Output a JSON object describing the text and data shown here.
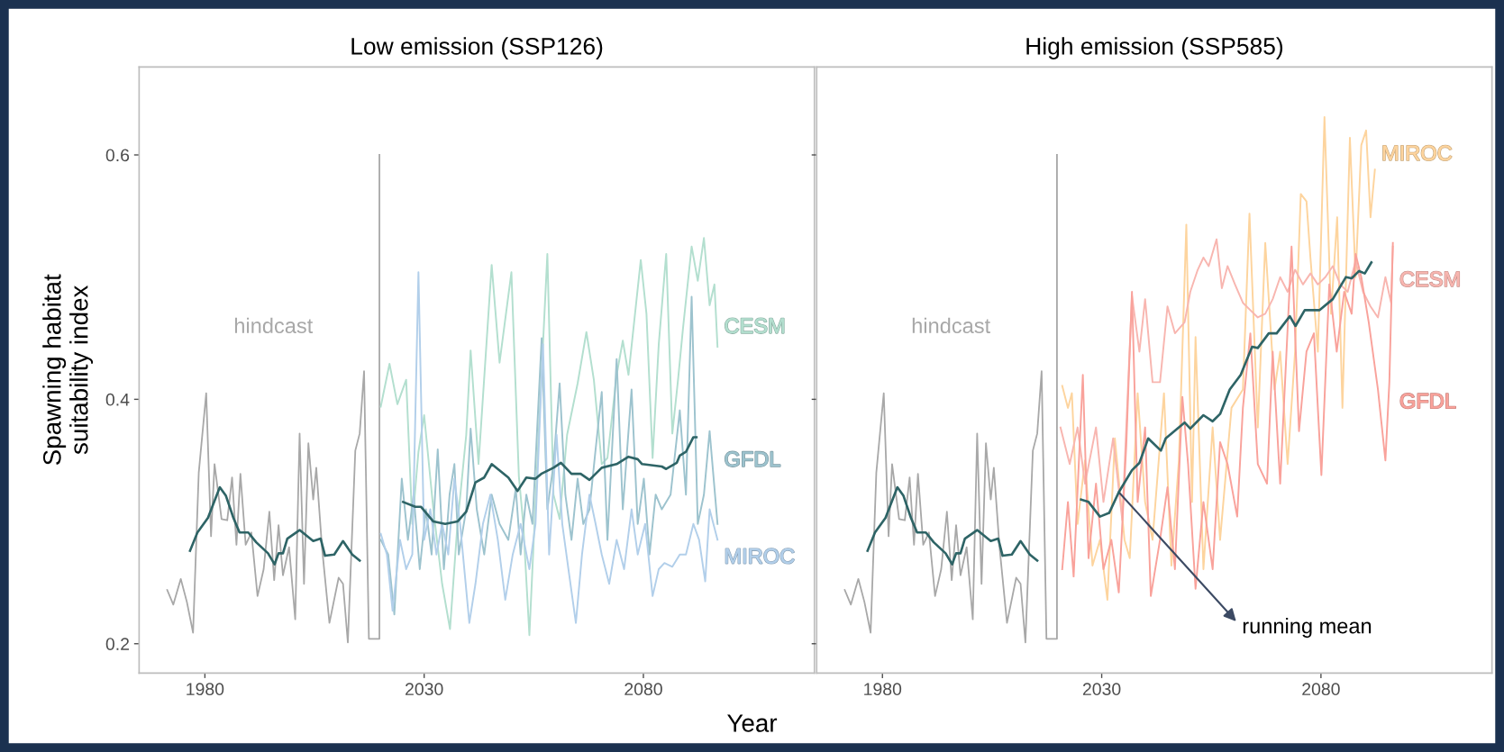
{
  "chart_data": [
    {
      "type": "line",
      "title": "Low emission (SSP126)",
      "xlabel": "Year",
      "ylabel": "Spawning habitat\nsuitability index",
      "xlim": [
        1965,
        2119
      ],
      "xticks": [
        1980,
        2030,
        2080
      ],
      "ylim": [
        0.176,
        0.672
      ],
      "yticks": [
        0.2,
        0.4,
        0.6
      ],
      "series": [
        {
          "name": "hindcast",
          "color": "#a8a8a8",
          "x": [
            1971.4,
            1972.8,
            1974.5,
            1975.9,
            1977.3,
            1978.6,
            1980.3,
            1981.4,
            1982.2,
            1983.8,
            1985.1,
            1986.2,
            1987.2,
            1988.1,
            1989.3,
            1990.6,
            1992.0,
            1993.4,
            1994.7,
            1995.8,
            1996.8,
            1997.8,
            1999.2,
            2000.6,
            2001.6,
            2002.6,
            2003.6,
            2004.7,
            2005.4,
            2006.7,
            2008.4,
            2010.5,
            2011.5,
            2012.6,
            2014.3,
            2015.3,
            2016.3,
            2017.4,
            2019.8,
            2019.8
          ],
          "values": [
            0.244,
            0.232,
            0.253,
            0.234,
            0.209,
            0.34,
            0.405,
            0.288,
            0.347,
            0.302,
            0.301,
            0.336,
            0.281,
            0.339,
            0.281,
            0.291,
            0.239,
            0.261,
            0.308,
            0.252,
            0.297,
            0.256,
            0.279,
            0.22,
            0.372,
            0.249,
            0.364,
            0.318,
            0.344,
            0.279,
            0.217,
            0.254,
            0.249,
            0.201,
            0.358,
            0.372,
            0.423,
            0.204,
            0.204,
            0.6
          ]
        },
        {
          "color": "#2e6466",
          "x": [
            1976.6,
            1978.3,
            1980.7,
            1983.4,
            1984.8,
            1986.5,
            1987.9,
            1989.9,
            1991.7,
            1994.4,
            1995.9,
            1996.8,
            1997.8,
            1998.8,
            2001.6,
            2004.7,
            2006.4,
            2007.4,
            2009.5,
            2011.5,
            2013.6,
            2015.3
          ],
          "values": [
            0.276,
            0.291,
            0.303,
            0.328,
            0.321,
            0.303,
            0.291,
            0.291,
            0.283,
            0.274,
            0.265,
            0.274,
            0.274,
            0.286,
            0.293,
            0.284,
            0.286,
            0.272,
            0.273,
            0.284,
            0.273,
            0.268
          ]
        },
        {
          "name": "CESM",
          "color": "#b3dfcf",
          "x": [
            2020.1,
            2022.1,
            2023.9,
            2025.9,
            2027.3,
            2028.7,
            2030.0,
            2032.1,
            2034.1,
            2035.9,
            2037.6,
            2039.6,
            2040.6,
            2042.4,
            2045.4,
            2047.2,
            2049.9,
            2051.6,
            2052.6,
            2054.0,
            2056.1,
            2058.1,
            2059.5,
            2060.9,
            2062.6,
            2065.0,
            2067.0,
            2068.7,
            2070.5,
            2071.8,
            2073.9,
            2075.3,
            2076.6,
            2079.4,
            2080.7,
            2082.1,
            2083.5,
            2085.2,
            2086.6,
            2087.9,
            2089.0,
            2091.0,
            2092.4,
            2093.8,
            2095.1,
            2096.2,
            2096.9
          ],
          "values": [
            0.394,
            0.429,
            0.396,
            0.416,
            0.298,
            0.357,
            0.387,
            0.31,
            0.249,
            0.212,
            0.298,
            0.371,
            0.44,
            0.347,
            0.51,
            0.43,
            0.504,
            0.337,
            0.298,
            0.207,
            0.371,
            0.519,
            0.322,
            0.302,
            0.371,
            0.413,
            0.455,
            0.416,
            0.347,
            0.352,
            0.42,
            0.448,
            0.42,
            0.514,
            0.47,
            0.352,
            0.445,
            0.519,
            0.372,
            0.416,
            0.457,
            0.525,
            0.497,
            0.532,
            0.477,
            0.494,
            0.443
          ]
        },
        {
          "name": "GFDL",
          "color": "#9dc3ce",
          "x": [
            2020.1,
            2021.8,
            2023.2,
            2024.9,
            2026.3,
            2027.6,
            2029.0,
            2030.4,
            2031.7,
            2033.1,
            2034.5,
            2035.8,
            2036.9,
            2037.9,
            2039.6,
            2040.6,
            2042.0,
            2043.7,
            2045.4,
            2047.2,
            2049.2,
            2050.9,
            2052.0,
            2053.3,
            2054.7,
            2056.8,
            2058.1,
            2059.5,
            2060.9,
            2062.2,
            2063.6,
            2065.0,
            2066.3,
            2067.7,
            2069.1,
            2070.5,
            2071.8,
            2073.9,
            2075.3,
            2077.3,
            2078.7,
            2080.1,
            2081.4,
            2082.8,
            2084.2,
            2086.2,
            2088.3,
            2089.7,
            2091.0,
            2092.4,
            2093.8,
            2095.1,
            2096.9
          ],
          "values": [
            0.285,
            0.273,
            0.224,
            0.335,
            0.285,
            0.322,
            0.261,
            0.31,
            0.273,
            0.359,
            0.261,
            0.322,
            0.347,
            0.273,
            0.31,
            0.376,
            0.31,
            0.273,
            0.322,
            0.298,
            0.285,
            0.327,
            0.273,
            0.322,
            0.298,
            0.45,
            0.31,
            0.347,
            0.413,
            0.322,
            0.285,
            0.335,
            0.298,
            0.31,
            0.359,
            0.406,
            0.285,
            0.433,
            0.31,
            0.408,
            0.298,
            0.335,
            0.273,
            0.322,
            0.31,
            0.322,
            0.391,
            0.322,
            0.484,
            0.298,
            0.322,
            0.374,
            0.298
          ]
        },
        {
          "name": "MIROC",
          "color": "#b2cfea",
          "x": [
            2020.1,
            2021.5,
            2022.8,
            2024.5,
            2025.9,
            2027.3,
            2028.7,
            2030.0,
            2031.4,
            2032.8,
            2034.1,
            2035.5,
            2036.9,
            2038.2,
            2040.3,
            2041.7,
            2043.4,
            2045.1,
            2046.8,
            2048.5,
            2050.2,
            2052.0,
            2054.0,
            2055.4,
            2057.1,
            2058.5,
            2060.2,
            2061.5,
            2062.9,
            2064.6,
            2066.0,
            2067.7,
            2069.1,
            2070.5,
            2072.2,
            2073.9,
            2075.6,
            2077.3,
            2078.7,
            2080.4,
            2082.1,
            2083.5,
            2084.8,
            2086.6,
            2088.3,
            2089.7,
            2091.4,
            2092.7,
            2094.1,
            2095.1,
            2096.9
          ],
          "values": [
            0.29,
            0.273,
            0.227,
            0.285,
            0.261,
            0.273,
            0.504,
            0.285,
            0.31,
            0.273,
            0.298,
            0.273,
            0.335,
            0.298,
            0.217,
            0.249,
            0.298,
            0.322,
            0.285,
            0.236,
            0.273,
            0.298,
            0.261,
            0.298,
            0.445,
            0.273,
            0.371,
            0.298,
            0.261,
            0.217,
            0.273,
            0.322,
            0.298,
            0.273,
            0.249,
            0.285,
            0.261,
            0.31,
            0.273,
            0.298,
            0.239,
            0.261,
            0.266,
            0.263,
            0.273,
            0.273,
            0.298,
            0.285,
            0.251,
            0.31,
            0.285
          ]
        },
        {
          "color": "#2e6466",
          "x": [
            2025.2,
            2028.0,
            2029.3,
            2032.1,
            2034.8,
            2037.6,
            2039.6,
            2041.7,
            2043.7,
            2045.4,
            2049.2,
            2051.3,
            2053.3,
            2055.4,
            2056.7,
            2059.5,
            2061.2,
            2063.6,
            2065.7,
            2067.7,
            2070.5,
            2073.9,
            2076.6,
            2078.7,
            2079.7,
            2084.2,
            2085.2,
            2087.6,
            2088.3,
            2089.7,
            2091.4,
            2092.1
          ],
          "values": [
            0.316,
            0.312,
            0.312,
            0.3,
            0.298,
            0.3,
            0.308,
            0.332,
            0.336,
            0.347,
            0.336,
            0.325,
            0.336,
            0.335,
            0.339,
            0.344,
            0.348,
            0.339,
            0.339,
            0.334,
            0.344,
            0.347,
            0.353,
            0.351,
            0.347,
            0.345,
            0.343,
            0.348,
            0.354,
            0.357,
            0.369,
            0.369
          ]
        }
      ]
    },
    {
      "type": "line",
      "title": "High emission (SSP585)",
      "tick_labels": "x",
      "annotations": [
        {
          "text": "running mean",
          "x": 2033.9,
          "y": 0.324
        }
      ],
      "xlim": [
        1965,
        2119
      ],
      "xticks": [
        1980,
        2030,
        2080
      ],
      "ylim": [
        0.176,
        0.672
      ],
      "yticks": [
        0.2,
        0.4,
        0.6
      ],
      "series": [
        {
          "name": "hindcast",
          "color": "#a8a8a8",
          "x": [
            1971.4,
            1972.8,
            1974.5,
            1975.9,
            1977.3,
            1978.6,
            1980.3,
            1981.4,
            1982.2,
            1983.8,
            1985.1,
            1986.2,
            1987.2,
            1988.1,
            1989.3,
            1990.6,
            1992.0,
            1993.4,
            1994.7,
            1995.8,
            1996.8,
            1997.8,
            1999.2,
            2000.6,
            2001.6,
            2002.6,
            2003.6,
            2004.7,
            2005.4,
            2006.7,
            2008.4,
            2010.5,
            2011.5,
            2012.6,
            2014.3,
            2015.3,
            2016.3,
            2017.4,
            2019.8,
            2019.8
          ],
          "values": [
            0.244,
            0.232,
            0.253,
            0.234,
            0.209,
            0.34,
            0.405,
            0.288,
            0.347,
            0.302,
            0.301,
            0.336,
            0.281,
            0.339,
            0.281,
            0.291,
            0.239,
            0.261,
            0.308,
            0.252,
            0.297,
            0.256,
            0.279,
            0.22,
            0.372,
            0.249,
            0.364,
            0.318,
            0.344,
            0.279,
            0.217,
            0.254,
            0.249,
            0.201,
            0.358,
            0.372,
            0.423,
            0.204,
            0.204,
            0.6
          ]
        },
        {
          "color": "#2e6466",
          "x": [
            1976.6,
            1978.3,
            1980.7,
            1983.4,
            1984.8,
            1986.5,
            1987.9,
            1989.9,
            1991.7,
            1994.4,
            1995.9,
            1996.8,
            1997.8,
            1998.8,
            2001.6,
            2004.7,
            2006.4,
            2007.4,
            2009.5,
            2011.5,
            2013.6,
            2015.3
          ],
          "values": [
            0.276,
            0.291,
            0.303,
            0.328,
            0.321,
            0.303,
            0.291,
            0.291,
            0.283,
            0.274,
            0.265,
            0.274,
            0.274,
            0.286,
            0.293,
            0.284,
            0.286,
            0.272,
            0.273,
            0.284,
            0.273,
            0.268
          ]
        },
        {
          "name": "MIROC",
          "color": "#fdd49e",
          "x": [
            2021.0,
            2022.3,
            2023.2,
            2024.5,
            2026.2,
            2027.9,
            2029.6,
            2031.3,
            2033.0,
            2035.2,
            2036.4,
            2038.2,
            2039.9,
            2041.6,
            2044.2,
            2045.9,
            2047.6,
            2049.3,
            2050.6,
            2051.4,
            2053.2,
            2055.3,
            2057.0,
            2059.6,
            2062.2,
            2063.7,
            2065.6,
            2067.3,
            2069.4,
            2070.7,
            2072.4,
            2074.1,
            2075.4,
            2076.7,
            2077.6,
            2079.3,
            2080.8,
            2082.3,
            2083.7,
            2084.9,
            2086.6,
            2087.9,
            2089.2,
            2090.3,
            2091.3,
            2092.3
          ],
          "values": [
            0.411,
            0.393,
            0.405,
            0.298,
            0.35,
            0.264,
            0.285,
            0.236,
            0.368,
            0.285,
            0.27,
            0.405,
            0.316,
            0.285,
            0.405,
            0.264,
            0.35,
            0.543,
            0.316,
            0.451,
            0.261,
            0.377,
            0.285,
            0.393,
            0.408,
            0.552,
            0.377,
            0.528,
            0.408,
            0.439,
            0.347,
            0.439,
            0.568,
            0.562,
            0.516,
            0.439,
            0.631,
            0.47,
            0.549,
            0.393,
            0.614,
            0.5,
            0.608,
            0.62,
            0.549,
            0.588
          ]
        },
        {
          "name": "CESM",
          "color": "#f8b6b0",
          "x": [
            2020.6,
            2022.7,
            2024.5,
            2026.2,
            2028.7,
            2030.4,
            2032.6,
            2034.7,
            2036.9,
            2038.6,
            2039.9,
            2041.6,
            2043.3,
            2045.0,
            2046.7,
            2048.9,
            2050.2,
            2051.9,
            2053.2,
            2054.4,
            2056.2,
            2057.4,
            2058.7,
            2060.4,
            2062.2,
            2063.9,
            2065.6,
            2067.3,
            2069.0,
            2070.7,
            2072.4,
            2074.1,
            2075.9,
            2077.6,
            2079.3,
            2081.0,
            2082.7,
            2084.4,
            2086.1,
            2087.9,
            2089.6,
            2091.3,
            2093.0,
            2094.7,
            2096.0,
            2096.4
          ],
          "values": [
            0.377,
            0.347,
            0.377,
            0.331,
            0.377,
            0.316,
            0.368,
            0.301,
            0.485,
            0.439,
            0.482,
            0.414,
            0.414,
            0.476,
            0.454,
            0.463,
            0.488,
            0.506,
            0.516,
            0.509,
            0.531,
            0.491,
            0.509,
            0.494,
            0.479,
            0.473,
            0.467,
            0.47,
            0.482,
            0.5,
            0.488,
            0.506,
            0.494,
            0.503,
            0.494,
            0.5,
            0.509,
            0.494,
            0.488,
            0.513,
            0.488,
            0.476,
            0.467,
            0.5,
            0.479,
            0.525
          ]
        },
        {
          "name": "GFDL",
          "color": "#f9a29b",
          "x": [
            2021.0,
            2022.3,
            2023.6,
            2025.7,
            2027.0,
            2028.7,
            2030.4,
            2032.2,
            2033.9,
            2035.6,
            2036.9,
            2038.2,
            2039.9,
            2041.2,
            2043.3,
            2045.0,
            2046.7,
            2048.4,
            2049.7,
            2051.4,
            2053.2,
            2055.3,
            2057.0,
            2058.7,
            2060.9,
            2062.2,
            2063.9,
            2065.6,
            2067.7,
            2069.0,
            2070.7,
            2073.3,
            2075.0,
            2076.7,
            2078.4,
            2080.1,
            2081.9,
            2083.6,
            2085.3,
            2087.0,
            2087.9,
            2089.2,
            2090.9,
            2093.0,
            2094.7,
            2095.6,
            2096.4
          ],
          "values": [
            0.261,
            0.316,
            0.255,
            0.42,
            0.27,
            0.331,
            0.261,
            0.285,
            0.242,
            0.362,
            0.488,
            0.316,
            0.377,
            0.239,
            0.285,
            0.328,
            0.261,
            0.402,
            0.347,
            0.245,
            0.316,
            0.261,
            0.365,
            0.347,
            0.304,
            0.393,
            0.454,
            0.347,
            0.331,
            0.439,
            0.331,
            0.525,
            0.374,
            0.439,
            0.454,
            0.338,
            0.494,
            0.439,
            0.488,
            0.47,
            0.519,
            0.5,
            0.463,
            0.408,
            0.35,
            0.414,
            0.528
          ]
        },
        {
          "color": "#2e6466",
          "x": [
            2025.3,
            2027.0,
            2029.6,
            2031.7,
            2033.9,
            2036.9,
            2038.6,
            2040.6,
            2043.5,
            2044.6,
            2048.9,
            2050.2,
            2053.2,
            2055.3,
            2057.0,
            2059.2,
            2061.7,
            2064.3,
            2065.6,
            2068.1,
            2069.9,
            2072.9,
            2074.2,
            2076.3,
            2079.7,
            2082.7,
            2085.7,
            2087.0,
            2088.7,
            2090.0,
            2091.5
          ],
          "values": [
            0.318,
            0.316,
            0.304,
            0.307,
            0.324,
            0.342,
            0.348,
            0.368,
            0.358,
            0.368,
            0.381,
            0.376,
            0.387,
            0.382,
            0.388,
            0.408,
            0.42,
            0.443,
            0.442,
            0.454,
            0.454,
            0.468,
            0.46,
            0.473,
            0.473,
            0.482,
            0.5,
            0.499,
            0.505,
            0.503,
            0.512
          ]
        }
      ]
    }
  ]
}
